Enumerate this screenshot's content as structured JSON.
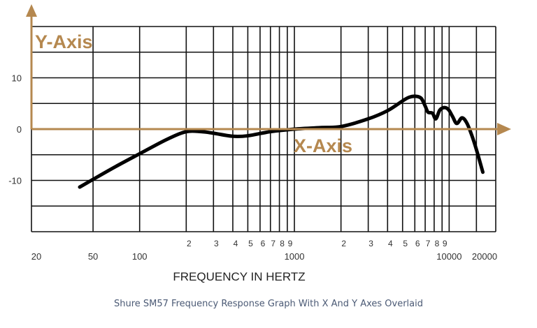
{
  "chart_data": {
    "type": "line",
    "xlabel": "FREQUENCY IN HERTZ",
    "xscale": "log",
    "xlim": [
      20,
      20000
    ],
    "ylim": [
      -20,
      20
    ],
    "grid": true,
    "x_major_ticks": [
      {
        "value": 20,
        "label": "20"
      },
      {
        "value": 50,
        "label": "50"
      },
      {
        "value": 100,
        "label": "100"
      },
      {
        "value": 1000,
        "label": "1000"
      },
      {
        "value": 10000,
        "label": "10000"
      },
      {
        "value": 20000,
        "label": "20000"
      }
    ],
    "x_minor_ticks": [
      {
        "value": 200,
        "label": "2"
      },
      {
        "value": 300,
        "label": "3"
      },
      {
        "value": 400,
        "label": "4"
      },
      {
        "value": 500,
        "label": "5"
      },
      {
        "value": 600,
        "label": "6"
      },
      {
        "value": 700,
        "label": "7"
      },
      {
        "value": 800,
        "label": "8"
      },
      {
        "value": 900,
        "label": "9"
      },
      {
        "value": 2000,
        "label": "2"
      },
      {
        "value": 3000,
        "label": "3"
      },
      {
        "value": 4000,
        "label": "4"
      },
      {
        "value": 5000,
        "label": "5"
      },
      {
        "value": 6000,
        "label": "6"
      },
      {
        "value": 7000,
        "label": "7"
      },
      {
        "value": 8000,
        "label": "8"
      },
      {
        "value": 9000,
        "label": "9"
      }
    ],
    "x_gridlines": [
      20,
      50,
      100,
      200,
      300,
      400,
      500,
      600,
      700,
      800,
      900,
      1000,
      2000,
      3000,
      4000,
      5000,
      6000,
      7000,
      8000,
      9000,
      10000,
      15000,
      20000
    ],
    "y_ticks": [
      {
        "value": 10,
        "label": "10"
      },
      {
        "value": 0,
        "label": "0"
      },
      {
        "value": -10,
        "label": "-10"
      }
    ],
    "y_gridlines": [
      20,
      15,
      10,
      5,
      0,
      -5,
      -10,
      -15,
      -20
    ],
    "series": [
      {
        "color": "#000000",
        "x": [
          41,
          50,
          70,
          100,
          150,
          200,
          250,
          300,
          400,
          500,
          700,
          1000,
          1500,
          2000,
          3000,
          4000,
          5000,
          5500,
          6100,
          6600,
          7000,
          7300,
          7800,
          8200,
          8700,
          9300,
          9900,
          10500,
          11200,
          12100,
          13000,
          14000,
          15000,
          16500
        ],
        "y": [
          -11.3,
          -9.8,
          -7.3,
          -4.8,
          -2.0,
          -0.5,
          -0.5,
          -0.8,
          -1.4,
          -1.3,
          -0.5,
          0.0,
          0.3,
          0.5,
          2.0,
          3.6,
          5.5,
          6.2,
          6.4,
          6.0,
          4.5,
          3.3,
          3.1,
          2.0,
          3.7,
          4.2,
          3.8,
          2.5,
          1.1,
          2.2,
          1.2,
          -1.2,
          -4.0,
          -8.4
        ]
      }
    ],
    "annotations": [
      {
        "text": "Y-Axis",
        "color": "#b5884f"
      },
      {
        "text": "X-Axis",
        "color": "#b5884f"
      }
    ],
    "overlay_axis_color": "#b5884f"
  },
  "caption": "Shure SM57 Frequency Response Graph With X And Y Axes Overlaid"
}
